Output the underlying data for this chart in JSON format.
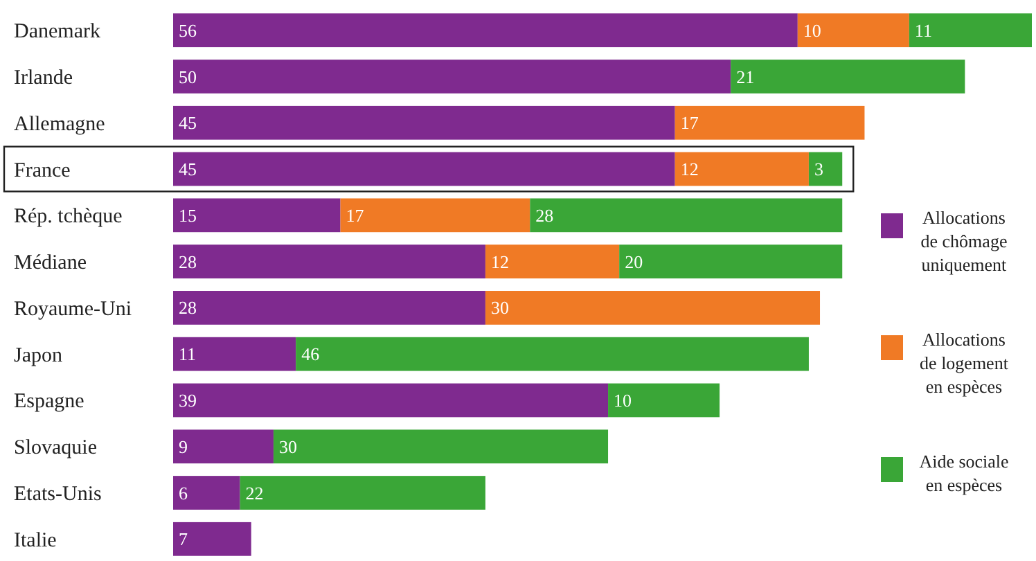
{
  "chart_data": {
    "type": "bar",
    "orientation": "horizontal",
    "stacked": true,
    "data_labels": true,
    "legend": "right",
    "categories": [
      "Danemark",
      "Irlande",
      "Allemagne",
      "France",
      "Rép. tchèque",
      "Médiane",
      "Royaume-Uni",
      "Japon",
      "Espagne",
      "Slovaquie",
      "Etats-Unis",
      "Italie"
    ],
    "series": [
      {
        "name": "Allocations de chômage uniquement",
        "color": "#7f2a8f",
        "values": [
          56,
          50,
          45,
          45,
          15,
          28,
          28,
          11,
          39,
          9,
          6,
          7
        ]
      },
      {
        "name": "Allocations de logement en espèces",
        "color": "#f07a25",
        "values": [
          10,
          null,
          17,
          12,
          17,
          12,
          30,
          null,
          null,
          null,
          null,
          null
        ]
      },
      {
        "name": "Aide sociale en espèces",
        "color": "#3aa637",
        "values": [
          11,
          21,
          null,
          3,
          28,
          20,
          null,
          46,
          10,
          30,
          22,
          null
        ]
      }
    ]
  }
}
